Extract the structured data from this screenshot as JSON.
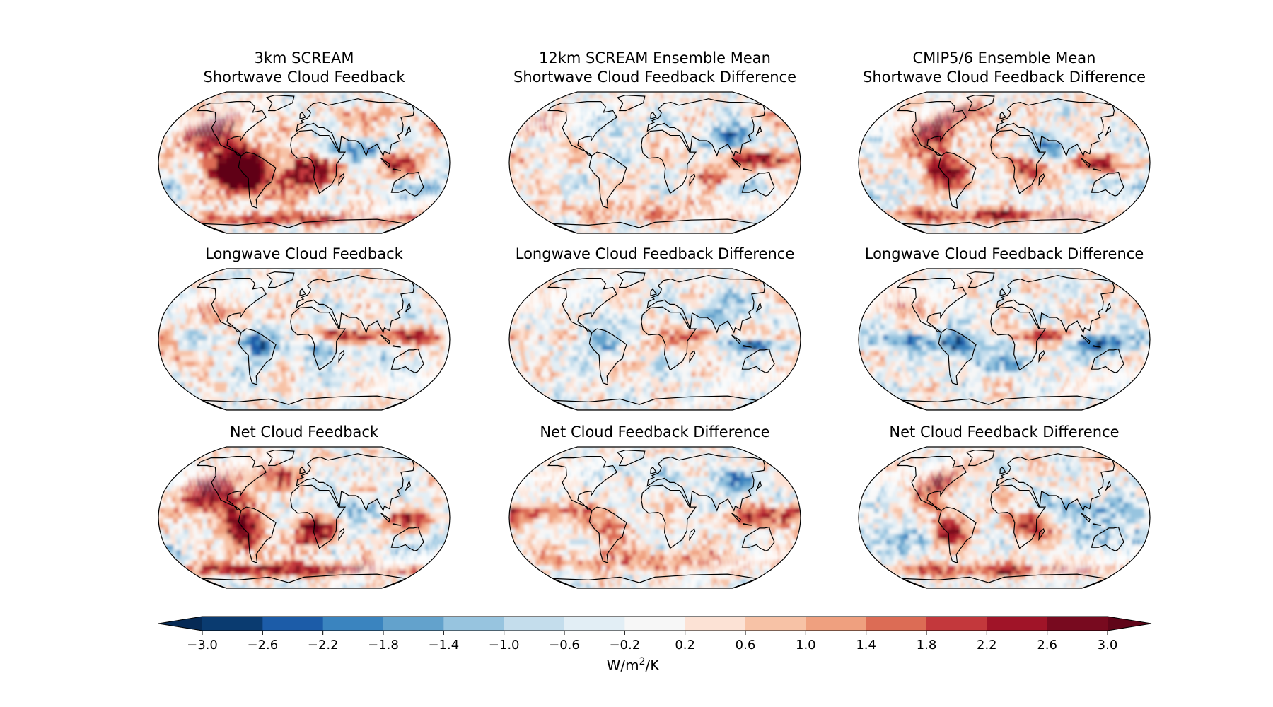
{
  "chart_data": {
    "type": "heatmap",
    "projection": "Robinson global maps",
    "columns": [
      "3km SCREAM",
      "12km SCREAM Ensemble Mean",
      "CMIP5/6 Ensemble Mean"
    ],
    "rows": [
      "Shortwave",
      "Longwave",
      "Net"
    ],
    "panels": [
      {
        "title_lines": [
          "3km SCREAM",
          "Shortwave Cloud Feedback"
        ],
        "row": 0,
        "col": 0,
        "field": "sw_3km"
      },
      {
        "title_lines": [
          "12km SCREAM Ensemble Mean",
          "Shortwave Cloud Feedback Difference"
        ],
        "row": 0,
        "col": 1,
        "field": "sw_12km_diff"
      },
      {
        "title_lines": [
          "CMIP5/6 Ensemble Mean",
          "Shortwave Cloud Feedback Difference"
        ],
        "row": 0,
        "col": 2,
        "field": "sw_cmip_diff"
      },
      {
        "title_lines": [
          "Longwave Cloud Feedback"
        ],
        "row": 1,
        "col": 0,
        "field": "lw_3km"
      },
      {
        "title_lines": [
          "Longwave Cloud Feedback Difference"
        ],
        "row": 1,
        "col": 1,
        "field": "lw_12km_diff"
      },
      {
        "title_lines": [
          "Longwave Cloud Feedback Difference"
        ],
        "row": 1,
        "col": 2,
        "field": "lw_cmip_diff"
      },
      {
        "title_lines": [
          "Net Cloud Feedback"
        ],
        "row": 2,
        "col": 0,
        "field": "net_3km"
      },
      {
        "title_lines": [
          "Net Cloud Feedback Difference"
        ],
        "row": 2,
        "col": 1,
        "field": "net_12km_diff"
      },
      {
        "title_lines": [
          "Net Cloud Feedback Difference"
        ],
        "row": 2,
        "col": 2,
        "field": "net_cmip_diff"
      }
    ],
    "colorbar": {
      "label_prefix": "W/m",
      "label_sup": "2",
      "label_suffix": "/K",
      "levels": [
        -3.0,
        -2.6,
        -2.2,
        -1.8,
        -1.4,
        -1.0,
        -0.6,
        -0.2,
        0.2,
        0.6,
        1.0,
        1.4,
        1.8,
        2.2,
        2.6,
        3.0
      ],
      "tick_labels": [
        "−3.0",
        "−2.6",
        "−2.2",
        "−1.8",
        "−1.4",
        "−1.0",
        "−0.6",
        "−0.2",
        "0.2",
        "0.6",
        "1.0",
        "1.4",
        "1.8",
        "2.2",
        "2.6",
        "3.0"
      ],
      "colors": [
        "#0a3b70",
        "#1c5ca8",
        "#3a84bf",
        "#63a2cc",
        "#97c4df",
        "#c4ddec",
        "#e2eef5",
        "#f7f7f7",
        "#fce2d5",
        "#f7c2a6",
        "#efa07f",
        "#dc6c55",
        "#c3383c",
        "#a01428",
        "#780a1f"
      ],
      "under_color": "#062a55",
      "over_color": "#600519",
      "extend": "both"
    },
    "colormap": "RdBu_r",
    "range": [
      -3.0,
      3.0
    ]
  }
}
